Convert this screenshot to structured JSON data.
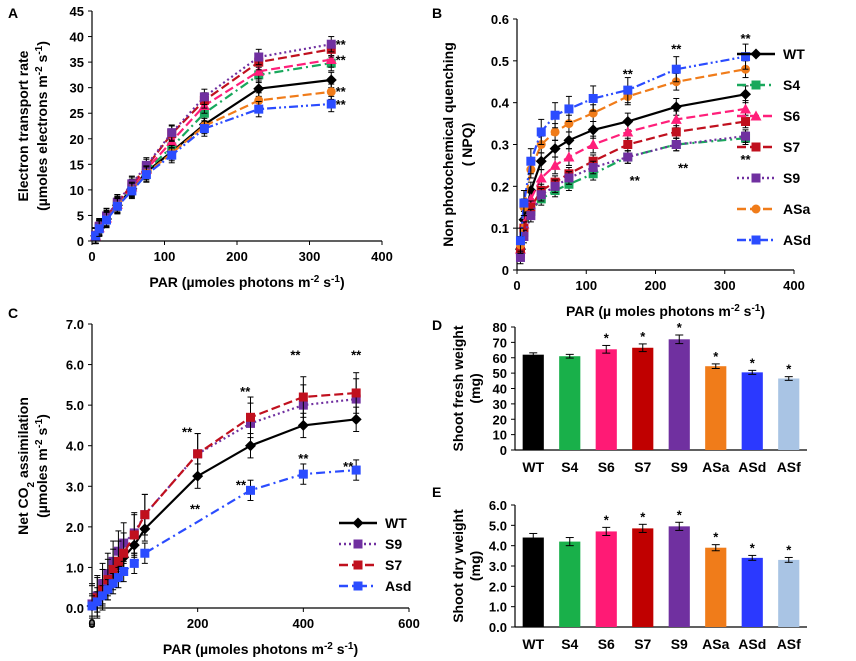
{
  "figure": {
    "ptsA": [
      5,
      10,
      20,
      35,
      55,
      75,
      110,
      155,
      230,
      330
    ],
    "ptsB": [
      5,
      10,
      20,
      35,
      55,
      75,
      110,
      160,
      230,
      330
    ],
    "ptsC": [
      0,
      10,
      20,
      30,
      40,
      50,
      60,
      80,
      100,
      200,
      300,
      400,
      500
    ],
    "ptsCa": [
      0,
      10,
      20,
      30,
      40,
      50,
      60,
      80,
      100,
      300,
      400,
      500
    ]
  },
  "chart_data": [
    {
      "panel": "A",
      "type": "line",
      "plot_key": "A",
      "xlabel": "PAR (µmoles photons m-2 s-1)",
      "ylabel_line1": "Electron transport rate",
      "ylabel_line2": "(µmoles electrons m-2 s-1)",
      "xlim": [
        0,
        400
      ],
      "ylim": [
        0,
        45
      ],
      "xticks": [
        0,
        100,
        200,
        300,
        400
      ],
      "yticks": [
        0,
        5,
        10,
        15,
        20,
        25,
        30,
        35,
        40,
        45
      ],
      "series": [
        {
          "name": "WT",
          "color": "#000000",
          "dash": "solid",
          "marker": "diamond",
          "x_key": "figure.ptsA",
          "err": 1.5,
          "values": [
            1,
            2.5,
            4.3,
            7,
            10.2,
            13.5,
            17.5,
            22.8,
            29.8,
            31.5
          ]
        },
        {
          "name": "S4",
          "color": "#19a85c",
          "dash": "dashdot",
          "marker": "square",
          "x_key": "figure.ptsA",
          "err": 1.5,
          "values": [
            1,
            2.6,
            4.4,
            7.1,
            10.4,
            13.8,
            18.4,
            25,
            32.5,
            34.8
          ]
        },
        {
          "name": "S6",
          "color": "#ff1f7a",
          "dash": "dashed",
          "marker": "triangle",
          "x_key": "figure.ptsA",
          "err": 1.5,
          "values": [
            1,
            2.6,
            4.5,
            7.2,
            10.6,
            14,
            19.5,
            26.5,
            33.2,
            35.5
          ]
        },
        {
          "name": "S7",
          "color": "#c0101e",
          "dash": "dashed",
          "marker": "square",
          "x_key": "figure.ptsA",
          "err": 1.5,
          "values": [
            1.1,
            2.8,
            4.8,
            7.5,
            11,
            14.5,
            21,
            27.5,
            35,
            37.5
          ]
        },
        {
          "name": "S9",
          "color": "#7030a0",
          "dash": "dotted",
          "marker": "square",
          "x_key": "figure.ptsA",
          "err": 1.5,
          "values": [
            1.1,
            2.9,
            4.9,
            7.6,
            11.2,
            14.8,
            21.2,
            28.2,
            36,
            38.5
          ]
        },
        {
          "name": "ASa",
          "color": "#f07c1a",
          "dash": "dashed",
          "marker": "circle",
          "x_key": "figure.ptsA",
          "err": 1.5,
          "values": [
            1,
            2.5,
            4.2,
            6.9,
            10,
            13.2,
            17.2,
            22.5,
            27.5,
            29.2
          ]
        },
        {
          "name": "ASd",
          "color": "#2b4cff",
          "dash": "dashdotdot",
          "marker": "square",
          "x_key": "figure.ptsA",
          "err": 1.5,
          "values": [
            1,
            2.4,
            4.1,
            6.8,
            9.8,
            13,
            16.8,
            22,
            25.8,
            26.8
          ]
        }
      ],
      "annotations": [
        {
          "text": "**",
          "x": 343,
          "y": 38.5
        },
        {
          "text": "**",
          "x": 343,
          "y": 35.5
        },
        {
          "text": "**",
          "x": 343,
          "y": 29.3
        },
        {
          "text": "**",
          "x": 343,
          "y": 26.8
        }
      ]
    },
    {
      "panel": "B",
      "type": "line",
      "plot_key": "B",
      "xlabel": "PAR (µ moles photons m-2 s-1)",
      "ylabel_line1": "Non photochemical quenching",
      "ylabel_line2": "( NPQ)",
      "xlim": [
        0,
        400
      ],
      "ylim": [
        0,
        0.6
      ],
      "xticks": [
        0,
        100,
        200,
        300,
        400
      ],
      "yticks": [
        0,
        0.1,
        0.2,
        0.3,
        0.4,
        0.5,
        0.6
      ],
      "legend": "right",
      "series": [
        {
          "name": "WT",
          "color": "#000000",
          "dash": "solid",
          "marker": "diamond",
          "x_key": "figure.ptsB",
          "err": 0.02,
          "values": [
            0.05,
            0.12,
            0.19,
            0.26,
            0.29,
            0.31,
            0.335,
            0.355,
            0.39,
            0.42
          ]
        },
        {
          "name": "S4",
          "color": "#19a85c",
          "dash": "dashdot",
          "marker": "square",
          "x_key": "figure.ptsB",
          "err": 0.015,
          "values": [
            0.04,
            0.09,
            0.14,
            0.17,
            0.19,
            0.205,
            0.23,
            0.27,
            0.3,
            0.315
          ]
        },
        {
          "name": "S6",
          "color": "#ff1f7a",
          "dash": "dashed",
          "marker": "triangle",
          "x_key": "figure.ptsB",
          "err": 0.02,
          "values": [
            0.05,
            0.11,
            0.17,
            0.22,
            0.25,
            0.27,
            0.3,
            0.33,
            0.36,
            0.385
          ]
        },
        {
          "name": "S7",
          "color": "#c0101e",
          "dash": "dashed",
          "marker": "square",
          "x_key": "figure.ptsB",
          "err": 0.015,
          "values": [
            0.045,
            0.1,
            0.15,
            0.19,
            0.21,
            0.23,
            0.26,
            0.3,
            0.33,
            0.355
          ]
        },
        {
          "name": "S9",
          "color": "#7030a0",
          "dash": "dotted",
          "marker": "square",
          "x_key": "figure.ptsB",
          "err": 0.015,
          "values": [
            0.03,
            0.08,
            0.13,
            0.18,
            0.2,
            0.22,
            0.245,
            0.27,
            0.3,
            0.32
          ]
        },
        {
          "name": "ASa",
          "color": "#f07c1a",
          "dash": "dashed",
          "marker": "circle",
          "x_key": "figure.ptsB",
          "err": 0.02,
          "values": [
            0.06,
            0.15,
            0.24,
            0.3,
            0.33,
            0.35,
            0.375,
            0.415,
            0.45,
            0.48
          ]
        },
        {
          "name": "ASd",
          "color": "#2b4cff",
          "dash": "dashdotdot",
          "marker": "square",
          "x_key": "figure.ptsB",
          "err": 0.03,
          "values": [
            0.07,
            0.16,
            0.26,
            0.33,
            0.37,
            0.385,
            0.41,
            0.43,
            0.48,
            0.51
          ]
        }
      ],
      "annotations": [
        {
          "text": "**",
          "x": 160,
          "y": 0.47
        },
        {
          "text": "**",
          "x": 230,
          "y": 0.53
        },
        {
          "text": "**",
          "x": 330,
          "y": 0.555
        },
        {
          "text": "**",
          "x": 170,
          "y": 0.215
        },
        {
          "text": "**",
          "x": 240,
          "y": 0.245
        },
        {
          "text": "**",
          "x": 330,
          "y": 0.265
        }
      ]
    },
    {
      "panel": "C",
      "type": "line",
      "plot_key": "C",
      "xlabel": "PAR (µmoles photons m-2 s-1)",
      "ylabel_line1": "Net CO2 assimilation",
      "ylabel_line2": "(µmoles m-2 s-1)",
      "xlim": [
        0,
        600
      ],
      "ylim": [
        0,
        7
      ],
      "xticks": [
        0,
        200,
        400,
        600
      ],
      "yticks": [
        "0.0",
        "1.0",
        "2.0",
        "3.0",
        "4.0",
        "5.0",
        "6.0",
        "7.0"
      ],
      "legend": "bottom-right",
      "series": [
        {
          "name": "WT",
          "color": "#000000",
          "dash": "solid",
          "marker": "diamond",
          "x_key": "figure.ptsC",
          "err": 0.3,
          "values": [
            0.05,
            0.2,
            0.4,
            0.6,
            0.85,
            1.05,
            1.25,
            1.55,
            1.95,
            3.25,
            4.0,
            4.5,
            4.65
          ]
        },
        {
          "name": "S9",
          "color": "#7030a0",
          "dash": "dotted",
          "marker": "square",
          "x_key": "figure.ptsC",
          "err": 0.5,
          "values": [
            0.1,
            0.3,
            0.6,
            0.85,
            1.15,
            1.4,
            1.6,
            1.85,
            2.3,
            3.8,
            4.55,
            5.0,
            5.15
          ]
        },
        {
          "name": "S7",
          "color": "#c0101e",
          "dash": "dashed",
          "marker": "square",
          "x_key": "figure.ptsC",
          "err": 0.5,
          "values": [
            0.05,
            0.25,
            0.45,
            0.7,
            0.95,
            1.15,
            1.35,
            1.8,
            2.3,
            3.8,
            4.7,
            5.2,
            5.3
          ]
        },
        {
          "name": "Asd",
          "color": "#2b4cff",
          "dash": "dashdot",
          "marker": "square",
          "x_key": "figure.ptsCa",
          "err": 0.25,
          "values": [
            0.05,
            0.15,
            0.3,
            0.45,
            0.6,
            0.75,
            0.9,
            1.1,
            1.35,
            2.9,
            3.3,
            3.4
          ]
        }
      ],
      "asd_200": {
        "x": 200,
        "y": 2.35
      },
      "annotations": [
        {
          "text": "**",
          "x": 180,
          "y": 4.35
        },
        {
          "text": "**",
          "x": 290,
          "y": 5.35
        },
        {
          "text": "**",
          "x": 385,
          "y": 6.25
        },
        {
          "text": "**",
          "x": 500,
          "y": 6.25
        },
        {
          "text": "**",
          "x": 195,
          "y": 2.45
        },
        {
          "text": "**",
          "x": 282,
          "y": 3.05
        },
        {
          "text": "**",
          "x": 400,
          "y": 3.7
        },
        {
          "text": "**",
          "x": 485,
          "y": 3.5
        }
      ]
    },
    {
      "panel": "D",
      "type": "bar",
      "plot_key": "D",
      "ylabel_line1": "Shoot fresh  weight",
      "ylabel_line2": "(mg)",
      "ylim": [
        0,
        80
      ],
      "yticks": [
        0,
        10,
        20,
        30,
        40,
        50,
        60,
        70,
        80
      ],
      "categories": [
        "WT",
        "S4",
        "S6",
        "S7",
        "S9",
        "ASa",
        "ASd",
        "ASf"
      ],
      "values": [
        62,
        61,
        65.5,
        66.5,
        72,
        54.5,
        50.5,
        46.5
      ],
      "errors": [
        1.2,
        1.2,
        2.5,
        2.5,
        2.8,
        1.5,
        1.3,
        1.2
      ],
      "significant": [
        false,
        false,
        true,
        true,
        true,
        true,
        true,
        true
      ],
      "colors": [
        "#000000",
        "#19b04a",
        "#ff1a75",
        "#c00000",
        "#7030a0",
        "#f07c1a",
        "#2b39ff",
        "#a9c4e4"
      ]
    },
    {
      "panel": "E",
      "type": "bar",
      "plot_key": "E",
      "ylabel_line1": "Shoot dry weight",
      "ylabel_line2": "(mg)",
      "ylim": [
        0,
        6
      ],
      "yticks": [
        "0.0",
        "1.0",
        "2.0",
        "3.0",
        "4.0",
        "5.0",
        "6.0"
      ],
      "categories": [
        "WT",
        "S4",
        "S6",
        "S7",
        "S9",
        "ASa",
        "ASd",
        "ASf"
      ],
      "values": [
        4.4,
        4.2,
        4.7,
        4.85,
        4.95,
        3.9,
        3.4,
        3.3
      ],
      "errors": [
        0.2,
        0.2,
        0.2,
        0.2,
        0.2,
        0.15,
        0.12,
        0.12
      ],
      "significant": [
        false,
        false,
        true,
        true,
        true,
        true,
        true,
        true
      ],
      "colors": [
        "#000000",
        "#19b04a",
        "#ff1a75",
        "#c00000",
        "#7030a0",
        "#f07c1a",
        "#2b39ff",
        "#a9c4e4"
      ]
    }
  ]
}
